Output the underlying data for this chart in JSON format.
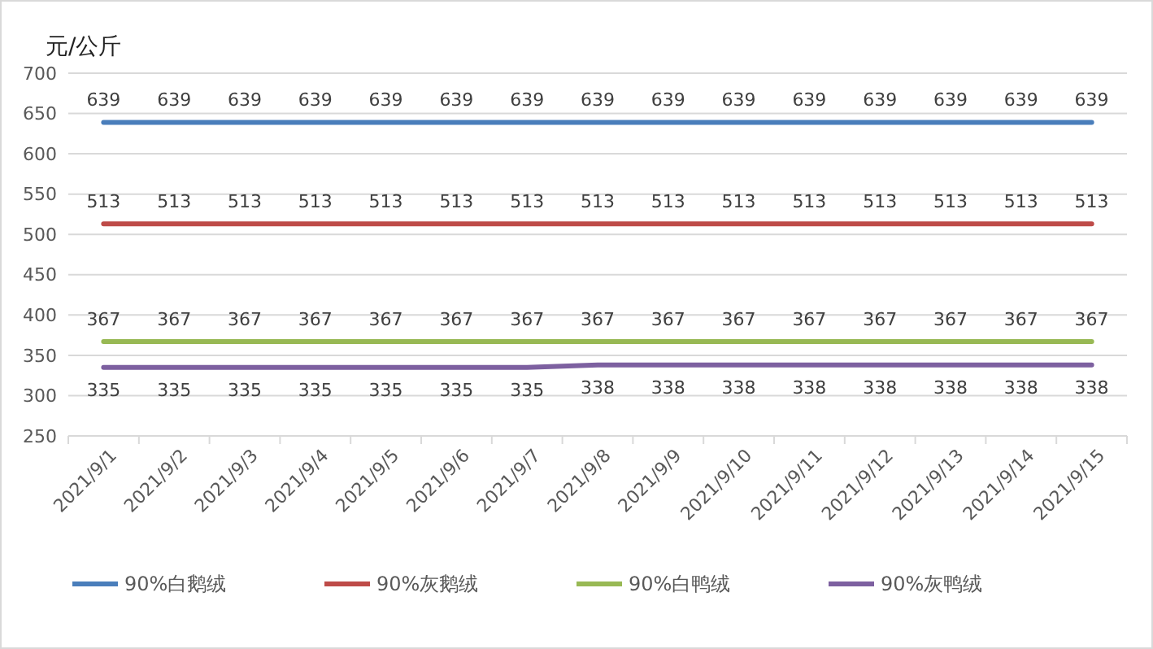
{
  "chart_data": {
    "type": "line",
    "ylabel": "元/公斤",
    "categories": [
      "2021/9/1",
      "2021/9/2",
      "2021/9/3",
      "2021/9/4",
      "2021/9/5",
      "2021/9/6",
      "2021/9/7",
      "2021/9/8",
      "2021/9/9",
      "2021/9/10",
      "2021/9/11",
      "2021/9/12",
      "2021/9/13",
      "2021/9/14",
      "2021/9/15"
    ],
    "series": [
      {
        "name": "90%白鹅绒",
        "color": "#4a7ebb",
        "values": [
          639,
          639,
          639,
          639,
          639,
          639,
          639,
          639,
          639,
          639,
          639,
          639,
          639,
          639,
          639
        ]
      },
      {
        "name": "90%灰鹅绒",
        "color": "#be4b48",
        "values": [
          513,
          513,
          513,
          513,
          513,
          513,
          513,
          513,
          513,
          513,
          513,
          513,
          513,
          513,
          513
        ]
      },
      {
        "name": "90%白鸭绒",
        "color": "#98b954",
        "values": [
          367,
          367,
          367,
          367,
          367,
          367,
          367,
          367,
          367,
          367,
          367,
          367,
          367,
          367,
          367
        ]
      },
      {
        "name": "90%灰鸭绒",
        "color": "#7d60a0",
        "values": [
          335,
          335,
          335,
          335,
          335,
          335,
          335,
          338,
          338,
          338,
          338,
          338,
          338,
          338,
          338
        ]
      }
    ],
    "ylim": [
      250,
      700
    ],
    "yticks": [
      250,
      300,
      350,
      400,
      450,
      500,
      550,
      600,
      650,
      700
    ],
    "grid": "y",
    "legend": "bottom",
    "data_labels": true,
    "marker": "none",
    "line_style": "solid"
  }
}
